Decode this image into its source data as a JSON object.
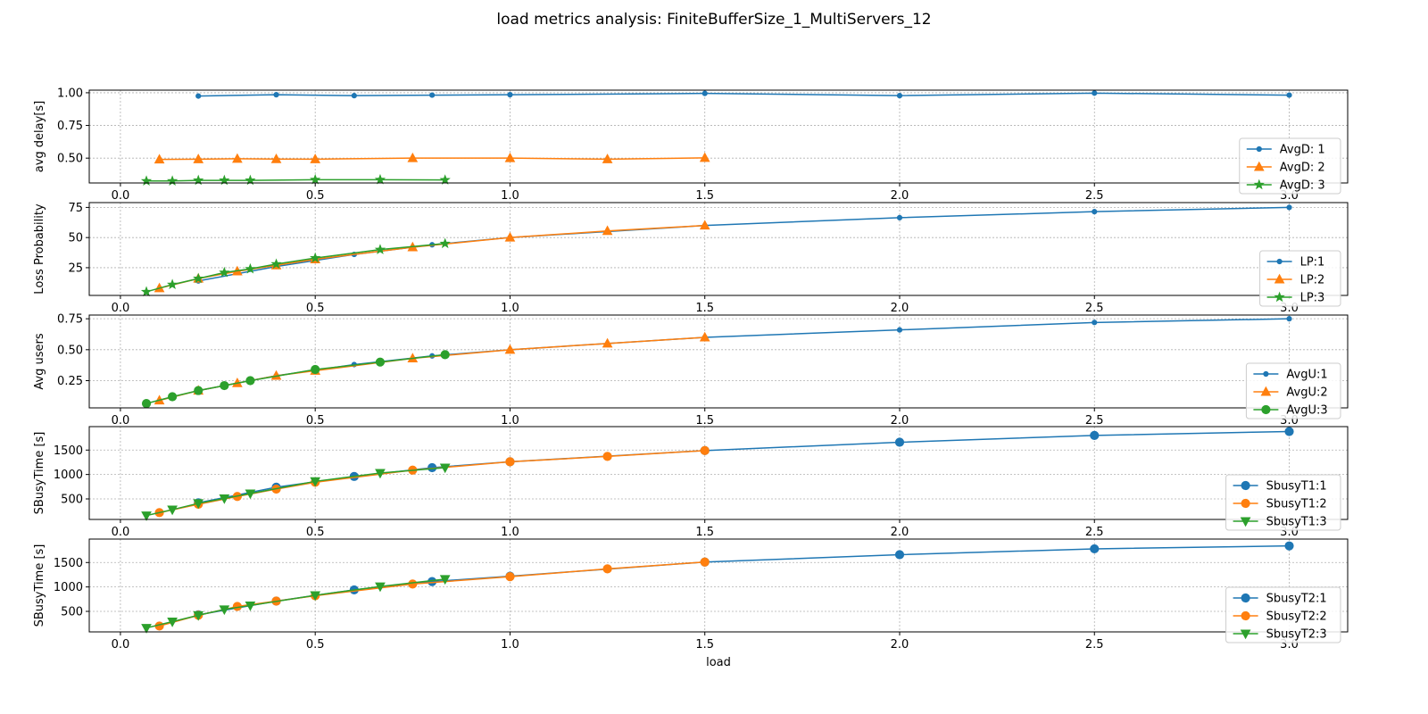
{
  "figure_title": "load metrics analysis: FiniteBufferSize_1_MultiServers_12",
  "colors": {
    "series1": "#1f77b4",
    "series2": "#ff7f0e",
    "series3": "#2ca02c"
  },
  "chart_data": [
    {
      "type": "line",
      "ylabel": "avg delay[s]",
      "xlabel": "",
      "xlim": [
        -0.08,
        3.15
      ],
      "ylim": [
        0.31,
        1.02
      ],
      "xticks": [
        0.0,
        0.5,
        1.0,
        1.5,
        2.0,
        2.5,
        3.0
      ],
      "xtick_labels": [
        "0.0",
        "0.5",
        "1.0",
        "1.5",
        "2.0",
        "2.5",
        "3.0"
      ],
      "yticks": [
        0.5,
        0.75,
        1.0
      ],
      "ytick_labels": [
        "0.50",
        "0.75",
        "1.00"
      ],
      "grid": true,
      "legend": "lower-right",
      "series": [
        {
          "name": "AvgD: 1",
          "marker": "point",
          "x": [
            0.2,
            0.4,
            0.6,
            0.8,
            1.0,
            1.5,
            2.0,
            2.5,
            3.0
          ],
          "y": [
            0.975,
            0.985,
            0.978,
            0.982,
            0.985,
            0.995,
            0.978,
            0.997,
            0.982
          ]
        },
        {
          "name": "AvgD: 2",
          "marker": "triangle",
          "x": [
            0.1,
            0.2,
            0.3,
            0.4,
            0.5,
            0.75,
            1.0,
            1.25,
            1.5
          ],
          "y": [
            0.49,
            0.492,
            0.495,
            0.493,
            0.492,
            0.5,
            0.5,
            0.492,
            0.502
          ]
        },
        {
          "name": "AvgD: 3",
          "marker": "star",
          "x": [
            0.0667,
            0.1333,
            0.2,
            0.2667,
            0.3333,
            0.5,
            0.6667,
            0.8333
          ],
          "y": [
            0.325,
            0.325,
            0.33,
            0.33,
            0.33,
            0.335,
            0.335,
            0.333
          ]
        }
      ]
    },
    {
      "type": "line",
      "ylabel": "Loss Probability",
      "xlabel": "",
      "xlim": [
        -0.08,
        3.15
      ],
      "ylim": [
        2,
        79
      ],
      "xticks": [
        0.0,
        0.5,
        1.0,
        1.5,
        2.0,
        2.5,
        3.0
      ],
      "xtick_labels": [
        "0.0",
        "0.5",
        "1.0",
        "1.5",
        "2.0",
        "2.5",
        "3.0"
      ],
      "yticks": [
        25,
        50,
        75
      ],
      "ytick_labels": [
        "25",
        "50",
        "75"
      ],
      "grid": true,
      "legend": "lower-right",
      "series": [
        {
          "name": "LP:1",
          "marker": "point",
          "x": [
            0.2,
            0.4,
            0.6,
            0.8,
            1.0,
            1.5,
            2.0,
            2.5,
            3.0
          ],
          "y": [
            14,
            26,
            36,
            44,
            50,
            60,
            66.5,
            71.5,
            75
          ]
        },
        {
          "name": "LP:2",
          "marker": "triangle",
          "x": [
            0.1,
            0.2,
            0.3,
            0.4,
            0.5,
            0.75,
            1.0,
            1.25,
            1.5
          ],
          "y": [
            8,
            16,
            22,
            27,
            32,
            42,
            50,
            55.5,
            60
          ]
        },
        {
          "name": "LP:3",
          "marker": "star",
          "x": [
            0.0667,
            0.1333,
            0.2,
            0.2667,
            0.3333,
            0.4,
            0.5,
            0.6667,
            0.8333
          ],
          "y": [
            5,
            11,
            16,
            21,
            24,
            28,
            33,
            40,
            45
          ]
        }
      ]
    },
    {
      "type": "line",
      "ylabel": "Avg users",
      "xlabel": "",
      "xlim": [
        -0.08,
        3.15
      ],
      "ylim": [
        0.03,
        0.78
      ],
      "xticks": [
        0.0,
        0.5,
        1.0,
        1.5,
        2.0,
        2.5,
        3.0
      ],
      "xtick_labels": [
        "0.0",
        "0.5",
        "1.0",
        "1.5",
        "2.0",
        "2.5",
        "3.0"
      ],
      "yticks": [
        0.25,
        0.5,
        0.75
      ],
      "ytick_labels": [
        "0.25",
        "0.50",
        "0.75"
      ],
      "grid": true,
      "legend": "lower-right",
      "series": [
        {
          "name": "AvgU:1",
          "marker": "point",
          "x": [
            0.2,
            0.4,
            0.6,
            0.8,
            1.0,
            1.5,
            2.0,
            2.5,
            3.0
          ],
          "y": [
            0.17,
            0.29,
            0.38,
            0.45,
            0.5,
            0.6,
            0.66,
            0.72,
            0.75
          ]
        },
        {
          "name": "AvgU:2",
          "marker": "triangle",
          "x": [
            0.1,
            0.2,
            0.3,
            0.4,
            0.5,
            0.75,
            1.0,
            1.25,
            1.5
          ],
          "y": [
            0.09,
            0.17,
            0.23,
            0.29,
            0.33,
            0.43,
            0.5,
            0.55,
            0.6
          ]
        },
        {
          "name": "AvgU:3",
          "marker": "circle",
          "x": [
            0.0667,
            0.1333,
            0.2,
            0.2667,
            0.3333,
            0.5,
            0.6667,
            0.8333
          ],
          "y": [
            0.065,
            0.12,
            0.17,
            0.21,
            0.25,
            0.34,
            0.4,
            0.46
          ]
        }
      ]
    },
    {
      "type": "line",
      "ylabel": "SBusyTime [s]",
      "xlabel": "",
      "xlim": [
        -0.08,
        3.15
      ],
      "ylim": [
        80,
        1980
      ],
      "xticks": [
        0.0,
        0.5,
        1.0,
        1.5,
        2.0,
        2.5,
        3.0
      ],
      "xtick_labels": [
        "0.0",
        "0.5",
        "1.0",
        "1.5",
        "2.0",
        "2.5",
        "3.0"
      ],
      "yticks": [
        500,
        1000,
        1500
      ],
      "ytick_labels": [
        "500",
        "1000",
        "1500"
      ],
      "grid": true,
      "legend": "lower-right",
      "series": [
        {
          "name": "SbusyT1:1",
          "marker": "circle",
          "x": [
            0.2,
            0.4,
            0.6,
            0.8,
            1.0,
            1.5,
            2.0,
            2.5,
            3.0
          ],
          "y": [
            420,
            740,
            960,
            1140,
            1260,
            1490,
            1660,
            1800,
            1880
          ]
        },
        {
          "name": "SbusyT1:2",
          "marker": "circle",
          "x": [
            0.1,
            0.2,
            0.3,
            0.4,
            0.5,
            0.75,
            1.0,
            1.25,
            1.5
          ],
          "y": [
            220,
            390,
            550,
            700,
            840,
            1090,
            1260,
            1370,
            1490
          ]
        },
        {
          "name": "SbusyT1:3",
          "marker": "triangle-down",
          "x": [
            0.0667,
            0.1333,
            0.2,
            0.2667,
            0.3333,
            0.5,
            0.6667,
            0.8333
          ],
          "y": [
            160,
            280,
            410,
            510,
            610,
            860,
            1030,
            1140
          ]
        }
      ]
    },
    {
      "type": "line",
      "ylabel": "SBusyTime [s]",
      "xlabel": "load",
      "xlim": [
        -0.08,
        3.15
      ],
      "ylim": [
        80,
        1980
      ],
      "xticks": [
        0.0,
        0.5,
        1.0,
        1.5,
        2.0,
        2.5,
        3.0
      ],
      "xtick_labels": [
        "0.0",
        "0.5",
        "1.0",
        "1.5",
        "2.0",
        "2.5",
        "3.0"
      ],
      "yticks": [
        500,
        1000,
        1500
      ],
      "ytick_labels": [
        "500",
        "1000",
        "1500"
      ],
      "grid": true,
      "legend": "lower-right",
      "series": [
        {
          "name": "SbusyT2:1",
          "marker": "circle",
          "x": [
            0.2,
            0.4,
            0.6,
            0.8,
            1.0,
            1.5,
            2.0,
            2.5,
            3.0
          ],
          "y": [
            430,
            710,
            940,
            1110,
            1220,
            1510,
            1660,
            1780,
            1840
          ]
        },
        {
          "name": "SbusyT2:2",
          "marker": "circle",
          "x": [
            0.1,
            0.2,
            0.3,
            0.4,
            0.5,
            0.75,
            1.0,
            1.25,
            1.5
          ],
          "y": [
            200,
            420,
            600,
            710,
            820,
            1060,
            1210,
            1370,
            1510
          ]
        },
        {
          "name": "SbusyT2:3",
          "marker": "triangle-down",
          "x": [
            0.0667,
            0.1333,
            0.2,
            0.2667,
            0.3333,
            0.5,
            0.6667,
            0.8333
          ],
          "y": [
            160,
            290,
            420,
            540,
            620,
            830,
            1010,
            1160
          ]
        }
      ]
    }
  ]
}
